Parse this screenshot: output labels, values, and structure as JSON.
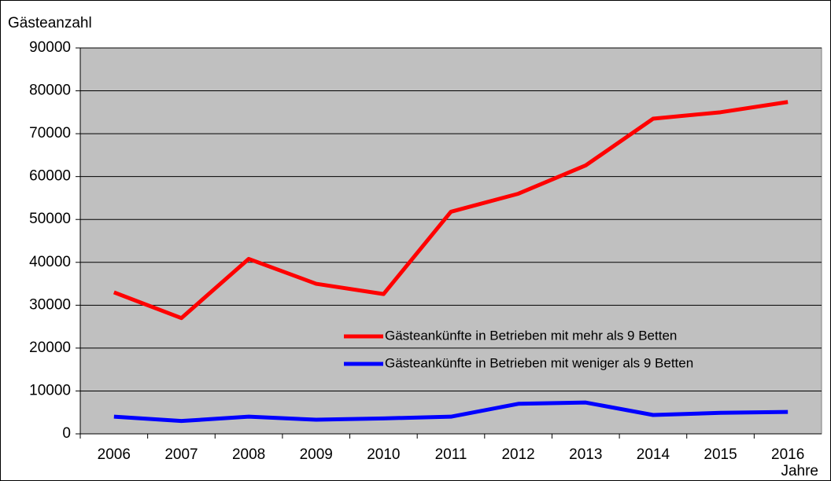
{
  "chart_data": {
    "type": "line",
    "y_label": "Gästeanzahl",
    "x_label": "Jahre",
    "categories": [
      "2006",
      "2007",
      "2008",
      "2009",
      "2010",
      "2011",
      "2012",
      "2013",
      "2014",
      "2015",
      "2016"
    ],
    "series": [
      {
        "name": "Gästeankünfte in Betrieben mit mehr als 9 Betten",
        "color": "#ff0000",
        "values": [
          33000,
          27000,
          40800,
          35000,
          32600,
          51800,
          56000,
          62600,
          73500,
          75000,
          77400
        ]
      },
      {
        "name": "Gästeankünfte in Betrieben mit weniger als 9 Betten",
        "color": "#0000ff",
        "values": [
          4000,
          3000,
          4000,
          3300,
          3600,
          4000,
          7000,
          7300,
          4400,
          4900,
          5100
        ]
      }
    ],
    "ylim": [
      0,
      90000
    ],
    "yticks": [
      0,
      10000,
      20000,
      30000,
      40000,
      50000,
      60000,
      70000,
      80000,
      90000
    ],
    "grid": true,
    "plot_background": "#c0c0c0"
  }
}
